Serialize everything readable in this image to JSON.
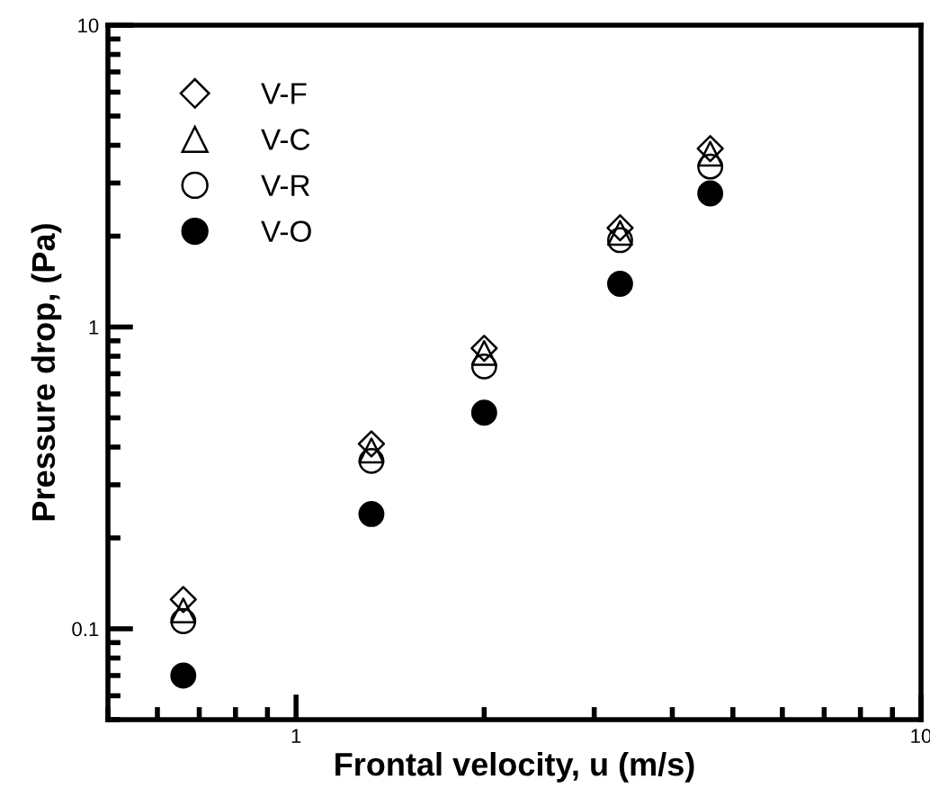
{
  "chart_data": {
    "type": "scatter",
    "xlabel": "Frontal velocity, u (m/s)",
    "ylabel": "Pressure drop, (Pa)",
    "log": "xy",
    "xlim": [
      0.5,
      10
    ],
    "ylim": [
      0.05,
      10
    ],
    "xticks": [
      1,
      10
    ],
    "yticks": [
      0.1,
      1,
      10
    ],
    "grid": false,
    "legend": "top left",
    "x": [
      0.66,
      1.32,
      2.0,
      3.3,
      4.6
    ],
    "series": [
      {
        "name": "V-F",
        "color": "#000000",
        "marker": "diamond",
        "values": [
          0.125,
          0.41,
          0.85,
          2.13,
          3.9
        ]
      },
      {
        "name": "V-C",
        "color": "#000000",
        "marker": "triangle",
        "values": [
          0.115,
          0.39,
          0.82,
          2.05,
          3.75
        ]
      },
      {
        "name": "V-R",
        "color": "#000000",
        "marker": "circle",
        "values": [
          0.106,
          0.36,
          0.74,
          1.94,
          3.4
        ]
      },
      {
        "name": "V-O",
        "color": "#000000",
        "marker": "circle",
        "values": [
          0.07,
          0.24,
          0.52,
          1.39,
          2.77
        ]
      }
    ]
  }
}
